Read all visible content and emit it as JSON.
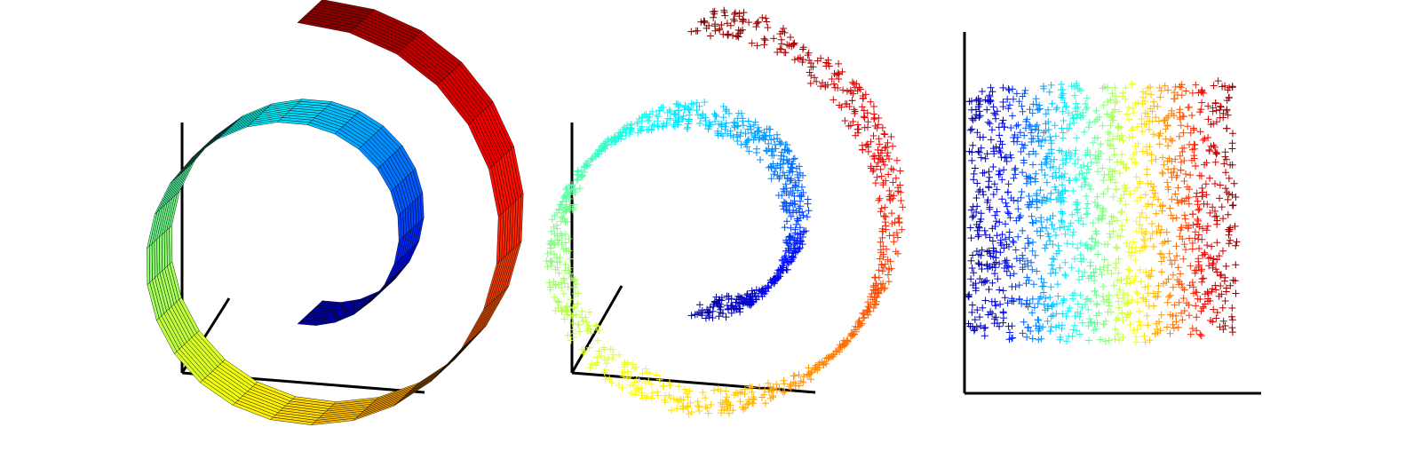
{
  "figure": {
    "panels": [
      {
        "name": "swiss-roll-surface",
        "kind": "3d-surface"
      },
      {
        "name": "swiss-roll-samples",
        "kind": "3d-scatter",
        "marker": "+"
      },
      {
        "name": "swiss-roll-embedding",
        "kind": "2d-scatter",
        "marker": "+"
      }
    ],
    "colormap": "jet",
    "colormap_stops": [
      "#00008f",
      "#0000ff",
      "#0080ff",
      "#00ffff",
      "#80ff80",
      "#ffff00",
      "#ff8000",
      "#ff0000",
      "#800000"
    ],
    "axis_color": "#000000",
    "grid": false,
    "legend": "none"
  }
}
